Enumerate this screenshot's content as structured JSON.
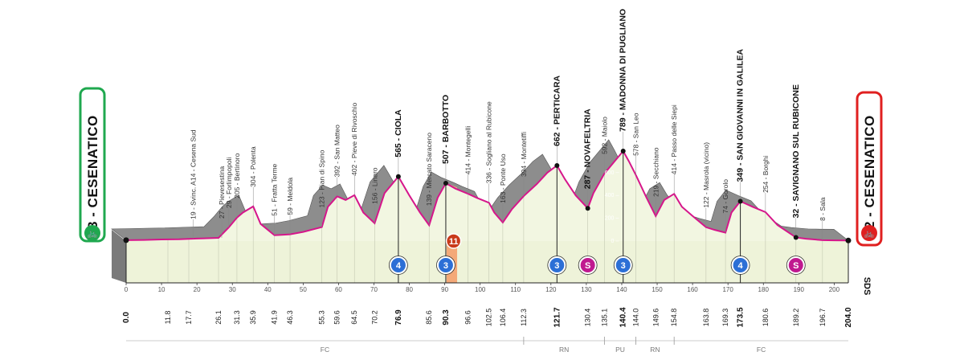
{
  "start": {
    "name": "3 - CESENATICO",
    "color": "#1fa84f"
  },
  "finish": {
    "name": "2 - CESENATICO",
    "color": "#e02020"
  },
  "sponsor_mark": "SDS",
  "places": [
    {
      "km": 19,
      "label": "19 - Svinc. A14 - Cesena Sud",
      "bold": false
    },
    {
      "km": 27,
      "label": "27 - Pievesestina",
      "bold": false
    },
    {
      "km": 29,
      "label": "29 - Forlimpopoli",
      "bold": false
    },
    {
      "km": 31.3,
      "label": "205 - Bertinoro",
      "bold": false
    },
    {
      "km": 35.9,
      "label": "304 - Polenta",
      "bold": false
    },
    {
      "km": 41.9,
      "label": "51 - Fratta Terme",
      "bold": false
    },
    {
      "km": 46.3,
      "label": "59 - Meldola",
      "bold": false
    },
    {
      "km": 55.3,
      "label": "123 - Pian di Spino",
      "bold": false
    },
    {
      "km": 59.6,
      "label": "392 - San Matteo",
      "bold": false
    },
    {
      "km": 64.5,
      "label": "402 - Pieve di Rivoschio",
      "bold": false
    },
    {
      "km": 70.2,
      "label": "156 - Linaro",
      "bold": false
    },
    {
      "km": 76.9,
      "label": "565 - CIOLA",
      "bold": true
    },
    {
      "km": 85.6,
      "label": "139 - Mercato Saraceno",
      "bold": false
    },
    {
      "km": 90.3,
      "label": "507 - BARBOTTO",
      "bold": true
    },
    {
      "km": 96.6,
      "label": "414 - Montegelli",
      "bold": false
    },
    {
      "km": 102.5,
      "label": "336 - Sogliano al Rubicone",
      "bold": false
    },
    {
      "km": 106.4,
      "label": "163 - Ponte Uso",
      "bold": false
    },
    {
      "km": 112.3,
      "label": "394 - Montetiffi",
      "bold": false
    },
    {
      "km": 121.7,
      "label": "662 - PERTICARA",
      "bold": true
    },
    {
      "km": 130.4,
      "label": "287 - NOVAFELTRIA",
      "bold": true
    },
    {
      "km": 135.1,
      "label": "592 - Maiolo",
      "bold": false
    },
    {
      "km": 140.4,
      "label": "789 - MADONNA DI PUGLIANO",
      "bold": true
    },
    {
      "km": 144.0,
      "label": "578 - San Leo",
      "bold": false
    },
    {
      "km": 149.6,
      "label": "219 - Secchiano",
      "bold": false
    },
    {
      "km": 154.8,
      "label": "414 - Passo delle Siepi",
      "bold": false
    },
    {
      "km": 163.8,
      "label": "122 - Masrola (vicino)",
      "bold": false
    },
    {
      "km": 169.3,
      "label": "74 - Gorolo",
      "bold": false
    },
    {
      "km": 173.5,
      "label": "349 - SAN GIOVANNI IN GALILEA",
      "bold": true
    },
    {
      "km": 180.6,
      "label": "254 - Borghi",
      "bold": false
    },
    {
      "km": 189.2,
      "label": "32 - SAVIGNANO SUL RUBICONE",
      "bold": true
    },
    {
      "km": 196.7,
      "label": "8 - Sala",
      "bold": false
    }
  ],
  "km_marks": [
    {
      "km": 0.0,
      "label": "0.0",
      "bold": true
    },
    {
      "km": 11.8,
      "label": "11.8",
      "bold": false
    },
    {
      "km": 17.7,
      "label": "17.7",
      "bold": false
    },
    {
      "km": 26.1,
      "label": "26.1",
      "bold": false
    },
    {
      "km": 31.3,
      "label": "31.3",
      "bold": false
    },
    {
      "km": 35.9,
      "label": "35.9",
      "bold": false
    },
    {
      "km": 41.9,
      "label": "41.9",
      "bold": false
    },
    {
      "km": 46.3,
      "label": "46.3",
      "bold": false
    },
    {
      "km": 55.3,
      "label": "55.3",
      "bold": false
    },
    {
      "km": 59.6,
      "label": "59.6",
      "bold": false
    },
    {
      "km": 64.5,
      "label": "64.5",
      "bold": false
    },
    {
      "km": 70.2,
      "label": "70.2",
      "bold": false
    },
    {
      "km": 76.9,
      "label": "76.9",
      "bold": true
    },
    {
      "km": 85.6,
      "label": "85.6",
      "bold": false
    },
    {
      "km": 90.3,
      "label": "90.3",
      "bold": true
    },
    {
      "km": 96.6,
      "label": "96.6",
      "bold": false
    },
    {
      "km": 102.5,
      "label": "102.5",
      "bold": false
    },
    {
      "km": 106.4,
      "label": "106.4",
      "bold": false
    },
    {
      "km": 112.3,
      "label": "112.3",
      "bold": false
    },
    {
      "km": 121.7,
      "label": "121.7",
      "bold": true
    },
    {
      "km": 130.4,
      "label": "130.4",
      "bold": false
    },
    {
      "km": 135.1,
      "label": "135.1",
      "bold": false
    },
    {
      "km": 140.4,
      "label": "140.4",
      "bold": true
    },
    {
      "km": 144.0,
      "label": "144.0",
      "bold": false
    },
    {
      "km": 149.6,
      "label": "149.6",
      "bold": false
    },
    {
      "km": 154.8,
      "label": "154.8",
      "bold": false
    },
    {
      "km": 163.8,
      "label": "163.8",
      "bold": false
    },
    {
      "km": 169.3,
      "label": "169.3",
      "bold": false
    },
    {
      "km": 173.5,
      "label": "173.5",
      "bold": true
    },
    {
      "km": 180.6,
      "label": "180.6",
      "bold": false
    },
    {
      "km": 189.2,
      "label": "189.2",
      "bold": false
    },
    {
      "km": 196.7,
      "label": "196.7",
      "bold": false
    },
    {
      "km": 204.0,
      "label": "204.0",
      "bold": true
    }
  ],
  "axis_ticks": [
    "0",
    "10",
    "20",
    "30",
    "40",
    "50",
    "60",
    "70",
    "80",
    "90",
    "100",
    "110",
    "120",
    "130",
    "140",
    "150",
    "160",
    "170",
    "180",
    "190",
    "200"
  ],
  "altitude_ticks": [
    "600",
    "400",
    "200",
    "0"
  ],
  "zones": [
    {
      "from": 0,
      "to": 112.3,
      "label": "FC"
    },
    {
      "from": 112.3,
      "to": 135.1,
      "label": "RN"
    },
    {
      "from": 135.1,
      "to": 144.0,
      "label": "PU"
    },
    {
      "from": 144.0,
      "to": 154.8,
      "label": "RN"
    },
    {
      "from": 154.8,
      "to": 204.0,
      "label": "FC"
    }
  ],
  "markers": [
    {
      "km": 76.9,
      "type": "climb",
      "text": "4",
      "color": "#2c6fd6"
    },
    {
      "km": 90.3,
      "type": "climb",
      "text": "3",
      "color": "#2c6fd6"
    },
    {
      "km": 121.7,
      "type": "climb",
      "text": "3",
      "color": "#2c6fd6"
    },
    {
      "km": 130.4,
      "type": "sprint",
      "text": "S",
      "color": "#c0198f"
    },
    {
      "km": 140.4,
      "type": "climb",
      "text": "3",
      "color": "#2c6fd6"
    },
    {
      "km": 173.5,
      "type": "climb",
      "text": "4",
      "color": "#2c6fd6"
    },
    {
      "km": 189.2,
      "type": "sprint",
      "text": "S",
      "color": "#c0198f"
    }
  ],
  "gradient_sign": {
    "km": 92.5,
    "text": "11"
  },
  "profile": [
    [
      0,
      8
    ],
    [
      5,
      10
    ],
    [
      10,
      14
    ],
    [
      15,
      16
    ],
    [
      20,
      22
    ],
    [
      26.1,
      28
    ],
    [
      29,
      120
    ],
    [
      31.3,
      205
    ],
    [
      33,
      250
    ],
    [
      35.9,
      304
    ],
    [
      38,
      150
    ],
    [
      41.9,
      51
    ],
    [
      44,
      55
    ],
    [
      46.3,
      59
    ],
    [
      50,
      80
    ],
    [
      55.3,
      123
    ],
    [
      57,
      300
    ],
    [
      59.6,
      392
    ],
    [
      62,
      360
    ],
    [
      64.5,
      402
    ],
    [
      67,
      250
    ],
    [
      70.2,
      156
    ],
    [
      73,
      420
    ],
    [
      76.9,
      565
    ],
    [
      80,
      400
    ],
    [
      83,
      250
    ],
    [
      85.6,
      139
    ],
    [
      88,
      380
    ],
    [
      90.3,
      507
    ],
    [
      93,
      460
    ],
    [
      96.6,
      414
    ],
    [
      99,
      380
    ],
    [
      102.5,
      336
    ],
    [
      104,
      250
    ],
    [
      106.4,
      163
    ],
    [
      109,
      280
    ],
    [
      112.3,
      394
    ],
    [
      116,
      500
    ],
    [
      119,
      600
    ],
    [
      121.7,
      662
    ],
    [
      124,
      540
    ],
    [
      127,
      400
    ],
    [
      130.4,
      287
    ],
    [
      132,
      420
    ],
    [
      135.1,
      592
    ],
    [
      138,
      700
    ],
    [
      140.4,
      789
    ],
    [
      142,
      700
    ],
    [
      144.0,
      578
    ],
    [
      147,
      380
    ],
    [
      149.6,
      219
    ],
    [
      152,
      360
    ],
    [
      154.8,
      414
    ],
    [
      157,
      300
    ],
    [
      160,
      220
    ],
    [
      163.8,
      122
    ],
    [
      166,
      100
    ],
    [
      169.3,
      74
    ],
    [
      171,
      250
    ],
    [
      173.5,
      349
    ],
    [
      177,
      300
    ],
    [
      180.6,
      254
    ],
    [
      184,
      140
    ],
    [
      189.2,
      32
    ],
    [
      192,
      20
    ],
    [
      196.7,
      8
    ],
    [
      200,
      6
    ],
    [
      204,
      5
    ]
  ]
}
